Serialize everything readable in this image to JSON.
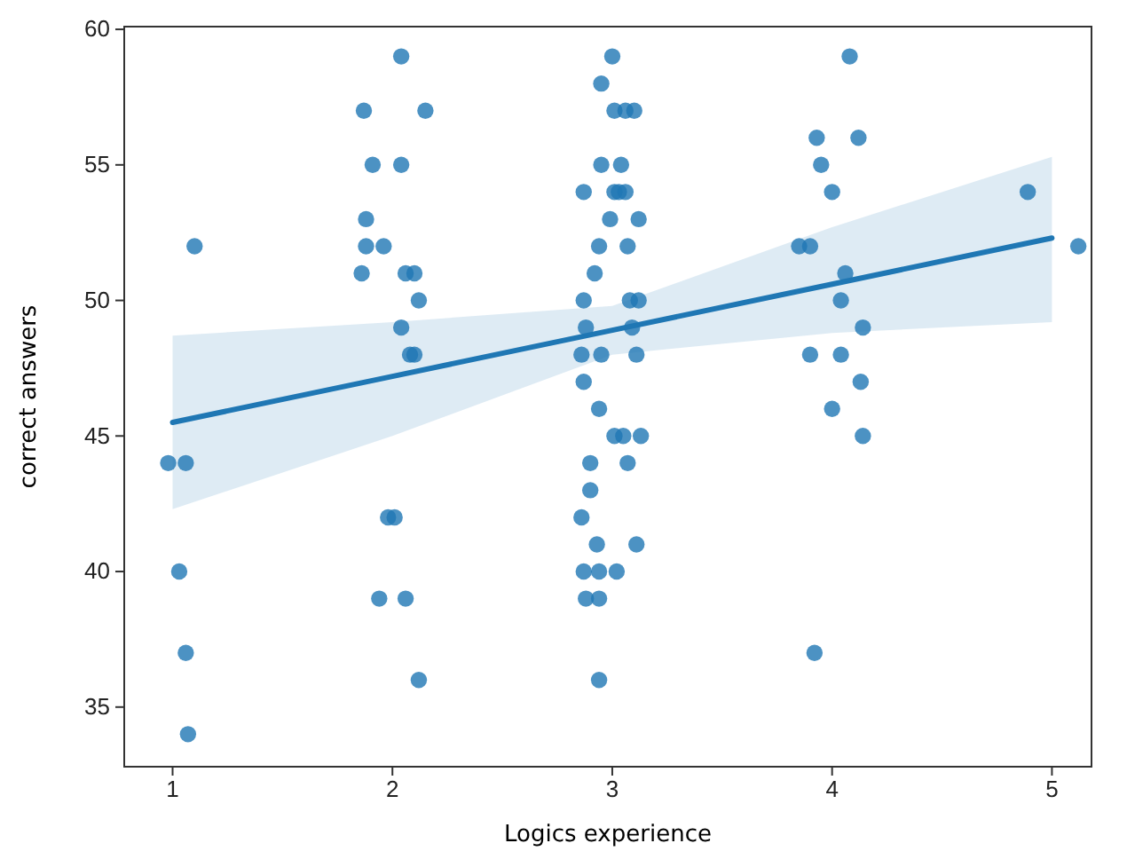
{
  "chart_data": {
    "type": "scatter",
    "xlabel": "Logics experience",
    "ylabel": "correct answers",
    "xlim": [
      0.78,
      5.18
    ],
    "ylim": [
      32.8,
      60.1
    ],
    "xticks": [
      1,
      2,
      3,
      4,
      5
    ],
    "yticks": [
      35,
      40,
      45,
      50,
      55,
      60
    ],
    "grid": false,
    "marker": "circle",
    "series": [
      {
        "color": "#1f77b4",
        "x": [
          0.98,
          1.06,
          1.03,
          1.06,
          1.07,
          1.1,
          2.04,
          1.87,
          2.15,
          1.91,
          2.04,
          1.88,
          1.88,
          1.96,
          1.86,
          2.06,
          2.1,
          2.12,
          2.04,
          2.08,
          2.1,
          1.98,
          2.01,
          1.94,
          2.06,
          2.12,
          3.0,
          2.95,
          3.01,
          3.06,
          3.1,
          2.95,
          3.04,
          2.87,
          3.01,
          3.03,
          3.06,
          2.99,
          3.12,
          2.94,
          3.07,
          2.92,
          2.87,
          3.08,
          3.12,
          2.88,
          3.09,
          2.86,
          2.95,
          3.11,
          2.87,
          2.94,
          3.01,
          3.05,
          3.13,
          2.9,
          3.07,
          2.9,
          2.86,
          2.93,
          3.11,
          2.87,
          2.94,
          3.02,
          2.88,
          2.94,
          2.94,
          4.08,
          3.93,
          4.12,
          3.95,
          4.0,
          3.85,
          3.9,
          4.06,
          4.04,
          4.14,
          3.9,
          4.04,
          4.13,
          4.0,
          4.14,
          3.92,
          4.89,
          5.12
        ],
        "values": [
          44,
          44,
          40,
          37,
          34,
          52,
          59,
          57,
          57,
          55,
          55,
          53,
          52,
          52,
          51,
          51,
          51,
          50,
          49,
          48,
          48,
          42,
          42,
          39,
          39,
          36,
          59,
          58,
          57,
          57,
          57,
          55,
          55,
          54,
          54,
          54,
          54,
          53,
          53,
          52,
          52,
          51,
          50,
          50,
          50,
          49,
          49,
          48,
          48,
          48,
          47,
          46,
          45,
          45,
          45,
          44,
          44,
          43,
          42,
          41,
          41,
          40,
          40,
          40,
          39,
          39,
          36,
          59,
          56,
          56,
          55,
          54,
          52,
          52,
          51,
          50,
          49,
          48,
          48,
          47,
          46,
          45,
          37,
          54,
          52
        ]
      },
      {
        "type": "line",
        "marker": "none",
        "color": "#1f77b4",
        "x": [
          1,
          2,
          3,
          4,
          5
        ],
        "values": [
          45.5,
          47.2,
          48.9,
          50.6,
          52.3
        ],
        "lower": [
          42.3,
          45.0,
          48.0,
          48.8,
          49.2
        ],
        "upper": [
          48.7,
          49.2,
          49.8,
          52.7,
          55.3
        ]
      }
    ]
  }
}
